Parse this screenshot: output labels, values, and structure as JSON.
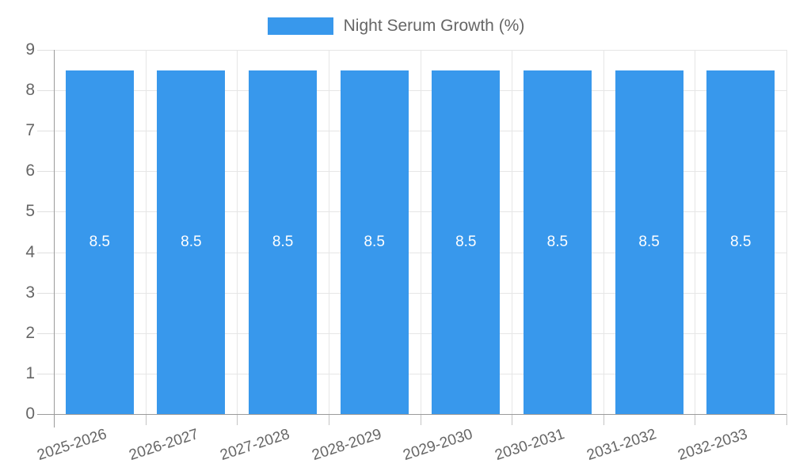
{
  "chart_data": {
    "type": "bar",
    "title": "",
    "legend": {
      "position": "top",
      "label": "Night Serum Growth (%)"
    },
    "categories": [
      "2025-2026",
      "2026-2027",
      "2027-2028",
      "2028-2029",
      "2029-2030",
      "2030-2031",
      "2031-2032",
      "2032-2033"
    ],
    "values": [
      8.5,
      8.5,
      8.5,
      8.5,
      8.5,
      8.5,
      8.5,
      8.5
    ],
    "bar_value_labels": [
      "8.5",
      "8.5",
      "8.5",
      "8.5",
      "8.5",
      "8.5",
      "8.5",
      "8.5"
    ],
    "ylim": [
      0,
      9
    ],
    "yticks": [
      0,
      1,
      2,
      3,
      4,
      5,
      6,
      7,
      8,
      9
    ],
    "grid": true,
    "colors": {
      "bar": "#3898ec",
      "bar_label": "#ffffff",
      "axis_text": "#666666",
      "legend_text": "#666666",
      "gridline": "#e6e6e6",
      "y_tick": "#e0e0e0",
      "x_tick": "#c4c4c4",
      "axis_line": "#9b9b9b",
      "background": "#ffffff"
    }
  }
}
